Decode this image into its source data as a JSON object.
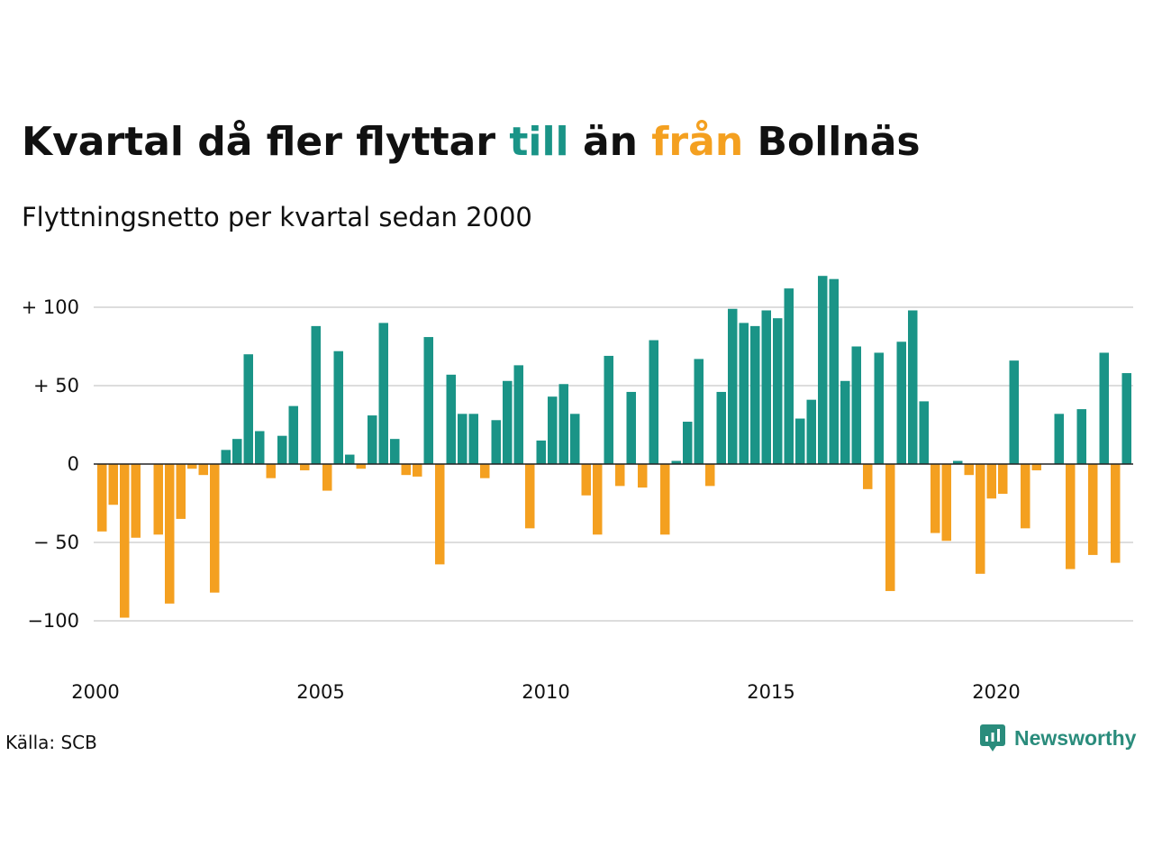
{
  "header": {
    "title_part1": "Kvartal då fler flyttar ",
    "title_till": "till",
    "title_part2": " än ",
    "title_fran": "från",
    "title_part3": " Bollnäs",
    "subtitle": "Flyttningsnetto per kvartal sedan 2000"
  },
  "footer": {
    "source": "Källa: SCB",
    "brand": "Newsworthy"
  },
  "colors": {
    "positive": "#1a9487",
    "negative": "#f4a020",
    "grid": "#dddddd",
    "text": "#111111",
    "brand": "#2a8c7c"
  },
  "icons": {
    "brand": "newsworthy-logo-icon"
  },
  "chart_data": {
    "type": "bar",
    "title": "Kvartal då fler flyttar till än från Bollnäs",
    "subtitle": "Flyttningsnetto per kvartal sedan 2000",
    "xlabel": "",
    "ylabel": "",
    "ylim": [
      -130,
      130
    ],
    "grid": true,
    "y_ticks": [
      {
        "value": 100,
        "label": "+ 100"
      },
      {
        "value": 50,
        "label": "+  50"
      },
      {
        "value": 0,
        "label": "0"
      },
      {
        "value": -50,
        "label": "− 50"
      },
      {
        "value": -100,
        "label": "−100"
      }
    ],
    "x_ticks": [
      {
        "year": 2000,
        "label": "2000"
      },
      {
        "year": 2005,
        "label": "2005"
      },
      {
        "year": 2010,
        "label": "2010"
      },
      {
        "year": 2015,
        "label": "2015"
      },
      {
        "year": 2020,
        "label": "2020"
      }
    ],
    "start_year": 2000,
    "start_quarter": 1,
    "values": [
      -43,
      -26,
      -98,
      -47,
      0,
      -45,
      -89,
      -35,
      -3,
      -7,
      -82,
      9,
      16,
      70,
      21,
      -9,
      18,
      37,
      -4,
      88,
      -17,
      72,
      6,
      -3,
      31,
      90,
      16,
      -7,
      -8,
      81,
      -64,
      57,
      32,
      32,
      -9,
      28,
      53,
      63,
      -41,
      15,
      43,
      51,
      32,
      -20,
      -45,
      69,
      -14,
      46,
      -15,
      79,
      -45,
      2,
      27,
      67,
      -14,
      46,
      99,
      90,
      88,
      98,
      93,
      112,
      29,
      41,
      120,
      118,
      53,
      75,
      -16,
      71,
      -81,
      78,
      98,
      40,
      -44,
      -49,
      2,
      -7,
      -70,
      -22,
      -19,
      66,
      -41,
      -4,
      0,
      32,
      -67,
      35,
      -58,
      71,
      -63,
      58
    ]
  }
}
